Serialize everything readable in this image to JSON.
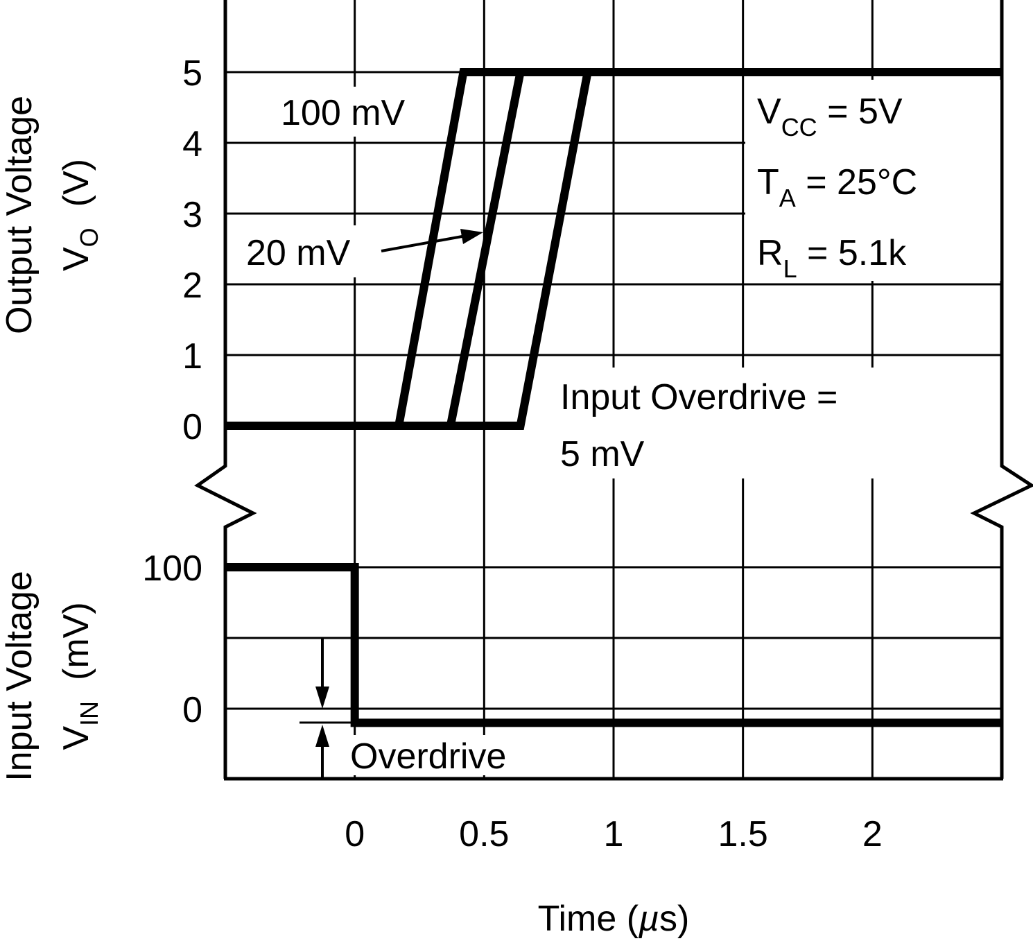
{
  "chart_data": {
    "type": "line",
    "title": "",
    "xlabel": "Time (µs)",
    "xlabel_parts": {
      "main": "Time (",
      "mu": "µ",
      "s": "s)"
    },
    "xlim": [
      -0.5,
      2.5
    ],
    "x_ticks": [
      0,
      0.5,
      1,
      1.5,
      2
    ],
    "x_tick_labels": [
      "0",
      "0.5",
      "1",
      "1.5",
      "2"
    ],
    "grid": true,
    "upper_panel": {
      "ylabel_line1": "Output Voltage",
      "ylabel_line2_main": "V",
      "ylabel_line2_sub": "O",
      "ylabel_line2_unit": "(V)",
      "ylim": [
        0,
        6
      ],
      "y_ticks": [
        0,
        1,
        2,
        3,
        4,
        5
      ],
      "y_tick_labels": [
        "0",
        "1",
        "2",
        "3",
        "4",
        "5"
      ],
      "series": [
        {
          "name": "100 mV",
          "x": [
            -0.5,
            0.17,
            0.42,
            2.5
          ],
          "y": [
            0,
            0,
            5,
            5
          ]
        },
        {
          "name": "20 mV",
          "x": [
            -0.5,
            0.37,
            0.64,
            2.5
          ],
          "y": [
            0,
            0,
            5,
            5
          ]
        },
        {
          "name": "5 mV",
          "x": [
            -0.5,
            0.64,
            0.9,
            2.5
          ],
          "y": [
            0,
            0,
            5,
            5
          ]
        }
      ],
      "annotations": {
        "label_100": "100 mV",
        "label_20": "20 mV",
        "overdrive_line1": "Input Overdrive =",
        "overdrive_line2": "5 mV",
        "conditions": [
          {
            "main": "V",
            "sub": "CC",
            "rest": " = 5V"
          },
          {
            "main": "T",
            "sub": "A",
            "rest": " = 25°C"
          },
          {
            "main": "R",
            "sub": "L",
            "rest": " = 5.1k"
          }
        ]
      }
    },
    "lower_panel": {
      "ylabel_line1": "Input Voltage",
      "ylabel_line2_main": "V",
      "ylabel_line2_sub": "IN",
      "ylabel_line2_unit": "(mV)",
      "ylim": [
        -50,
        100
      ],
      "y_ticks": [
        0,
        100
      ],
      "y_tick_labels": [
        "0",
        "100"
      ],
      "series": [
        {
          "name": "Input",
          "x": [
            -0.5,
            0,
            0,
            2.5
          ],
          "y": [
            100,
            100,
            -10,
            -10
          ]
        }
      ],
      "annotations": {
        "overdrive": "Overdrive"
      }
    }
  }
}
